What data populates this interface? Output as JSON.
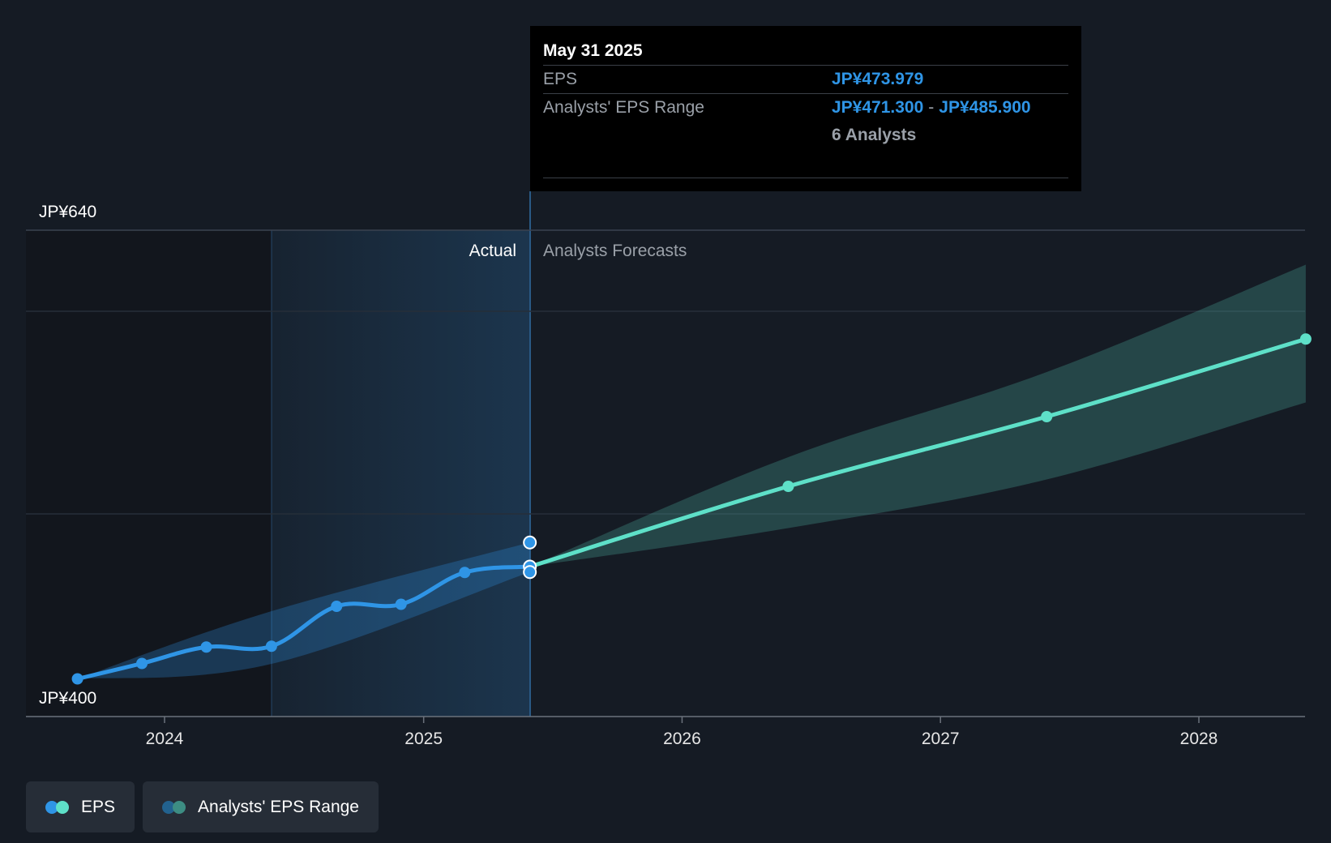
{
  "chart_data": {
    "type": "line",
    "x_axis": {
      "type": "date",
      "ticks": [
        "2024",
        "2025",
        "2026",
        "2027",
        "2028"
      ]
    },
    "y_axis": {
      "ticks": [
        "JP¥640",
        "JP¥400"
      ],
      "ylim": [
        400,
        640
      ]
    },
    "zones": {
      "actual_label": "Actual",
      "forecast_label": "Analysts Forecasts"
    },
    "series": [
      {
        "name": "EPS",
        "kind": "actual",
        "color": "#2f95e6",
        "points": [
          {
            "x": "2023-08-31",
            "y": 418.6
          },
          {
            "x": "2023-11-30",
            "y": 426.2
          },
          {
            "x": "2024-02-29",
            "y": 434.3
          },
          {
            "x": "2024-05-31",
            "y": 434.7
          },
          {
            "x": "2024-08-31",
            "y": 454.4
          },
          {
            "x": "2024-11-30",
            "y": 455.4
          },
          {
            "x": "2025-02-28",
            "y": 471.1
          },
          {
            "x": "2025-05-31",
            "y": 473.979
          }
        ]
      },
      {
        "name": "EPS Forecast",
        "kind": "forecast",
        "color": "#5ee0c8",
        "points": [
          {
            "x": "2025-05-31",
            "y": 473.979
          },
          {
            "x": "2026-05-31",
            "y": 513.6
          },
          {
            "x": "2027-05-31",
            "y": 548.0
          },
          {
            "x": "2028-05-31",
            "y": 586.3
          }
        ]
      }
    ],
    "ranges": [
      {
        "name": "Actual EPS Range",
        "color": "#2f95e6",
        "points": [
          {
            "x": "2023-08-31",
            "low": 418.6,
            "high": 418.6
          },
          {
            "x": "2024-05-31",
            "low": 426.0,
            "high": 452.0
          },
          {
            "x": "2025-05-31",
            "low": 471.3,
            "high": 485.9
          }
        ]
      },
      {
        "name": "Analysts' EPS Range",
        "color": "#5ee0c8",
        "points": [
          {
            "x": "2025-05-31",
            "low": 473.979,
            "high": 473.979
          },
          {
            "x": "2026-05-31",
            "low": 493.0,
            "high": 528.0
          },
          {
            "x": "2027-05-31",
            "low": 517.0,
            "high": 570.0
          },
          {
            "x": "2028-05-31",
            "low": 555.0,
            "high": 623.0
          }
        ]
      }
    ],
    "highlight": {
      "x": "2025-05-31",
      "eps": 473.979,
      "range_low": 471.3,
      "range_high": 485.9
    }
  },
  "tooltip": {
    "date": "May 31 2025",
    "eps_label": "EPS",
    "eps_value": "JP¥473.979",
    "range_label": "Analysts' EPS Range",
    "range_low": "JP¥471.300",
    "range_sep": "-",
    "range_high": "JP¥485.900",
    "analysts": "6 Analysts"
  },
  "legend": {
    "items": [
      {
        "label": "EPS",
        "colors": [
          "#2f95e6",
          "#5ee0c8"
        ]
      },
      {
        "label": "Analysts' EPS Range",
        "colors": [
          "#22628f",
          "#3d8d83"
        ]
      }
    ]
  },
  "colors": {
    "background": "#151b24",
    "actual_shade": "#1d3a55",
    "grid": "#323a45"
  }
}
